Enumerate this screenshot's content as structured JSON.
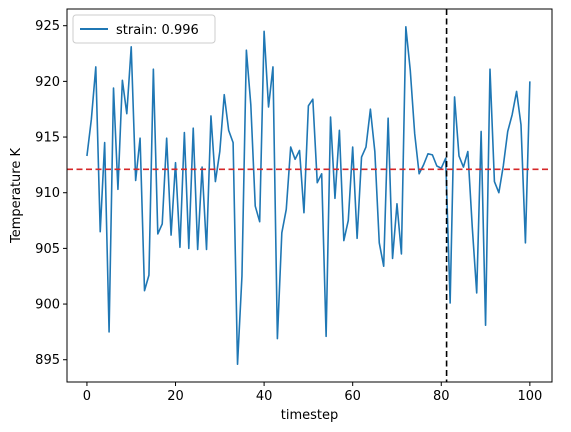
{
  "chart_data": {
    "type": "line",
    "xlabel": "timestep",
    "ylabel": "Temperature K",
    "xlim": [
      -4.5,
      105
    ],
    "ylim": [
      893.0,
      926.5
    ],
    "xticks": [
      0,
      20,
      40,
      60,
      80,
      100
    ],
    "yticks": [
      895,
      900,
      905,
      910,
      915,
      920,
      925
    ],
    "grid": false,
    "legend_position": "upper-left",
    "series": [
      {
        "name": "strain: 0.996",
        "color": "#1f77b4",
        "x": [
          0,
          1,
          2,
          3,
          4,
          5,
          6,
          7,
          8,
          9,
          10,
          11,
          12,
          13,
          14,
          15,
          16,
          17,
          18,
          19,
          20,
          21,
          22,
          23,
          24,
          25,
          26,
          27,
          28,
          29,
          30,
          31,
          32,
          33,
          34,
          35,
          36,
          37,
          38,
          39,
          40,
          41,
          42,
          43,
          44,
          45,
          46,
          47,
          48,
          49,
          50,
          51,
          52,
          53,
          54,
          55,
          56,
          57,
          58,
          59,
          60,
          61,
          62,
          63,
          64,
          65,
          66,
          67,
          68,
          69,
          70,
          71,
          72,
          73,
          74,
          75,
          76,
          77,
          78,
          79,
          80,
          81,
          82,
          83,
          84,
          85,
          86,
          87,
          88,
          89,
          90,
          91,
          92,
          93,
          94,
          95,
          96,
          97,
          98,
          99,
          100
        ],
        "values": [
          913.3,
          916.6,
          921.3,
          906.5,
          914.5,
          897.5,
          919.4,
          910.3,
          920.1,
          917.1,
          923.1,
          911.1,
          914.9,
          901.2,
          902.6,
          921.1,
          906.3,
          907.2,
          914.9,
          906.2,
          912.7,
          905.1,
          915.4,
          905.0,
          915.8,
          904.9,
          912.3,
          904.9,
          916.9,
          911.0,
          913.7,
          918.8,
          915.6,
          914.5,
          894.6,
          902.5,
          922.8,
          917.9,
          908.8,
          907.4,
          924.5,
          917.7,
          921.3,
          896.9,
          906.4,
          908.5,
          914.1,
          913.0,
          913.8,
          908.2,
          917.8,
          918.4,
          910.9,
          911.7,
          897.1,
          916.8,
          909.5,
          915.6,
          905.7,
          907.5,
          914.1,
          905.9,
          913.2,
          914.1,
          917.5,
          913.7,
          905.5,
          903.4,
          916.7,
          904.1,
          909.0,
          904.5,
          924.9,
          921.0,
          915.3,
          911.7,
          912.5,
          913.5,
          913.4,
          912.4,
          912.2,
          913.1,
          900.1,
          918.6,
          913.3,
          912.3,
          913.7,
          906.9,
          901.0,
          915.5,
          898.1,
          921.1,
          911.0,
          910.0,
          912.4,
          915.5,
          917.0,
          919.1,
          916.1,
          905.5,
          920.0
        ]
      }
    ],
    "reference_lines": [
      {
        "orientation": "horizontal",
        "value": 912.1,
        "color": "#d62728",
        "style": "dashed"
      },
      {
        "orientation": "vertical",
        "value": 81.2,
        "color": "#000000",
        "style": "dashed"
      }
    ]
  }
}
